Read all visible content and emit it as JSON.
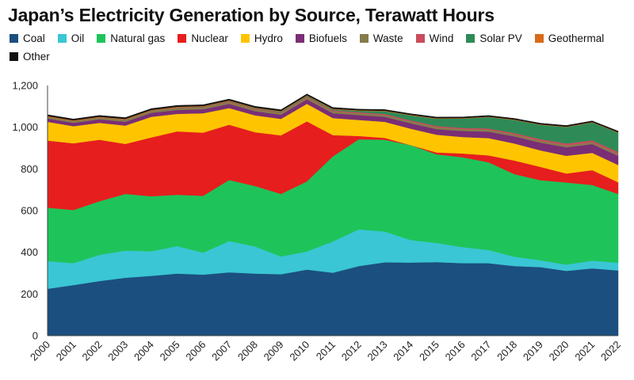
{
  "chart_data": {
    "type": "area",
    "title": "Japan’s Electricity Generation by Source, Terawatt Hours",
    "xlabel": "",
    "ylabel": "",
    "ylim": [
      0,
      1200
    ],
    "y_ticks": [
      "0",
      "200",
      "400",
      "600",
      "800",
      "1,000",
      "1,200"
    ],
    "grid": false,
    "legend_position": "top",
    "stacked": true,
    "x": [
      "2000",
      "2001",
      "2002",
      "2003",
      "2004",
      "2005",
      "2006",
      "2007",
      "2008",
      "2009",
      "2010",
      "2011",
      "2012",
      "2013",
      "2014",
      "2015",
      "2016",
      "2017",
      "2018",
      "2019",
      "2020",
      "2021",
      "2022"
    ],
    "series": [
      {
        "name": "Coal",
        "color": "#1b4f7f",
        "values": [
          225,
          243,
          262,
          278,
          287,
          298,
          293,
          304,
          298,
          295,
          317,
          302,
          334,
          352,
          351,
          353,
          348,
          348,
          334,
          329,
          311,
          323,
          313
        ]
      },
      {
        "name": "Oil",
        "color": "#3ac6d4",
        "values": [
          133,
          105,
          126,
          130,
          118,
          132,
          105,
          150,
          130,
          85,
          87,
          150,
          176,
          148,
          108,
          92,
          77,
          63,
          45,
          33,
          30,
          37,
          37
        ]
      },
      {
        "name": "Natural gas",
        "color": "#1ec45a",
        "values": [
          256,
          255,
          257,
          272,
          264,
          246,
          273,
          293,
          290,
          300,
          336,
          408,
          432,
          440,
          455,
          425,
          431,
          421,
          396,
          384,
          394,
          363,
          330
        ]
      },
      {
        "name": "Nuclear",
        "color": "#e61e1e",
        "values": [
          322,
          320,
          295,
          240,
          282,
          304,
          303,
          265,
          258,
          281,
          288,
          102,
          16,
          9,
          0,
          9,
          18,
          33,
          65,
          64,
          43,
          71,
          56
        ]
      },
      {
        "name": "Hydro",
        "color": "#ffc400",
        "values": [
          90,
          82,
          81,
          88,
          99,
          84,
          93,
          80,
          81,
          79,
          84,
          82,
          77,
          77,
          79,
          85,
          79,
          83,
          82,
          79,
          85,
          83,
          83
        ]
      },
      {
        "name": "Biofuels",
        "color": "#7a2e76",
        "values": [
          16,
          16,
          17,
          18,
          19,
          19,
          19,
          20,
          20,
          20,
          22,
          23,
          23,
          24,
          26,
          27,
          29,
          31,
          34,
          37,
          41,
          42,
          44
        ]
      },
      {
        "name": "Waste",
        "color": "#857c4c",
        "values": [
          8,
          8,
          8,
          9,
          9,
          9,
          9,
          9,
          9,
          9,
          9,
          9,
          9,
          9,
          9,
          9,
          9,
          9,
          9,
          9,
          9,
          9,
          9
        ]
      },
      {
        "name": "Wind",
        "color": "#c94c5c",
        "values": [
          0.1,
          0.3,
          0.5,
          0.8,
          1,
          2,
          2,
          3,
          3,
          3,
          4,
          5,
          5,
          5,
          5,
          6,
          6,
          6,
          7,
          8,
          9,
          9,
          10
        ]
      },
      {
        "name": "Solar PV",
        "color": "#2e8b57",
        "values": [
          0.4,
          0.5,
          0.6,
          0.8,
          1,
          1.4,
          1.7,
          1.9,
          2.3,
          3,
          3.8,
          5.2,
          7,
          13,
          24,
          35,
          45,
          55,
          63,
          69,
          79,
          86,
          92
        ]
      },
      {
        "name": "Geothermal",
        "color": "#d86a1a",
        "values": [
          3.3,
          3.4,
          3.4,
          3.5,
          3.2,
          3.2,
          3.1,
          3.0,
          2.8,
          2.8,
          2.6,
          2.6,
          2.6,
          2.6,
          2.6,
          2.6,
          2.1,
          2.1,
          2.1,
          2.1,
          2.1,
          2.1,
          2.1
        ]
      },
      {
        "name": "Other",
        "color": "#111111",
        "values": [
          6,
          6,
          6,
          6,
          6,
          6,
          6,
          6,
          6,
          6,
          6,
          6,
          5,
          5,
          5,
          5,
          5,
          5,
          5,
          5,
          5,
          5,
          5
        ]
      }
    ]
  }
}
